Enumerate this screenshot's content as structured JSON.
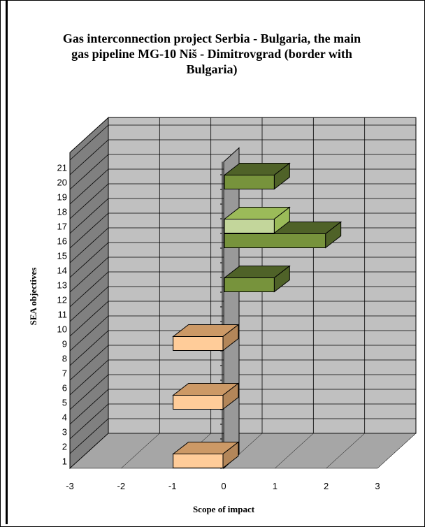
{
  "chart_data": {
    "type": "bar",
    "orientation": "horizontal",
    "three_d": true,
    "title": "Gas interconnection project Serbia - Bulgaria, the main gas pipeline MG-10 Niš - Dimitrovgrad (border with Bulgaria)",
    "xlabel": "Scope of impact",
    "ylabel": "SEA objectives",
    "xlim": [
      -3,
      3
    ],
    "xticks": [
      "-3",
      "-2",
      "-1",
      "0",
      "1",
      "2",
      "3"
    ],
    "categories": [
      "1",
      "2",
      "3",
      "4",
      "5",
      "6",
      "7",
      "8",
      "9",
      "10",
      "11",
      "12",
      "13",
      "14",
      "15",
      "16",
      "17",
      "18",
      "19",
      "20",
      "21"
    ],
    "values": [
      -1,
      0,
      0,
      0,
      -1,
      0,
      0,
      0,
      -1,
      0,
      0,
      0,
      1,
      0,
      0,
      2,
      1,
      0,
      0,
      1,
      0
    ],
    "grid": true,
    "colors": {
      "negative": "#ffcc99",
      "negative_top": "#cc9966",
      "positive": "#77933c",
      "positive_top": "#4f6228",
      "positive_light": "#c3d69b",
      "positive_light_top": "#9bbb59",
      "wall": "#c0c0c0",
      "side_wall": "#808080",
      "floor": "#a6a6a6"
    }
  }
}
